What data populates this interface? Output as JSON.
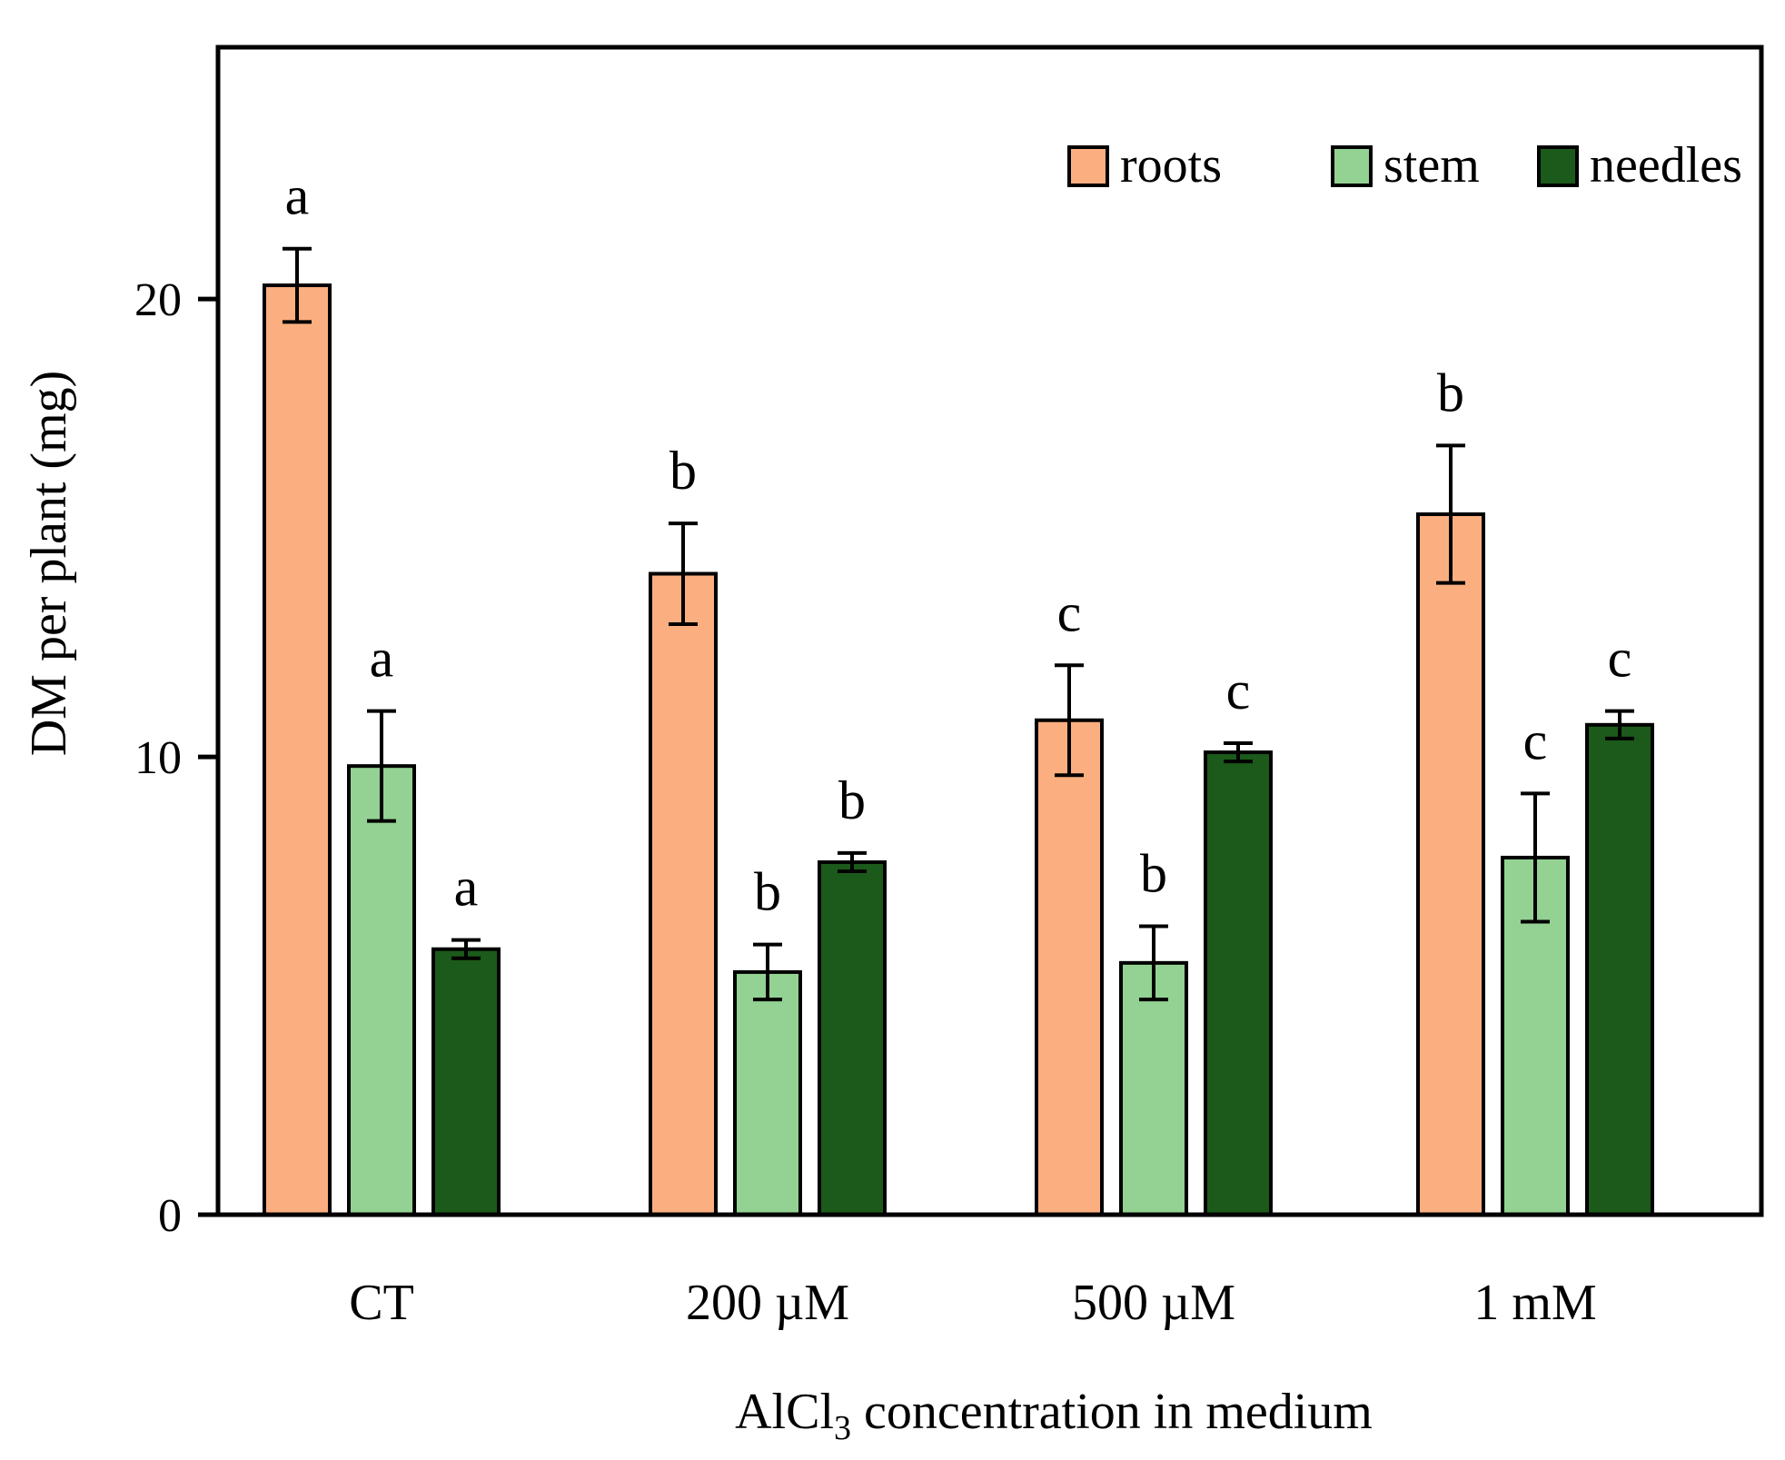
{
  "chart_data": {
    "type": "bar",
    "xlabel": {
      "main": "AlCl",
      "sub": "3",
      "rest": " concentration in medium"
    },
    "ylabel": "DM per plant (mg)",
    "ylim": [
      0,
      25.5
    ],
    "yticks": [
      0,
      10,
      20
    ],
    "ytick_labels": [
      "0",
      "10",
      "20"
    ],
    "grid": false,
    "legend_position": "top-right",
    "categories": [
      "CT",
      "200 µM",
      "500 µM",
      "1 mM"
    ],
    "series": [
      {
        "name": "roots",
        "color": "#fbaf80",
        "values": [
          20.3,
          14.0,
          10.8,
          15.3
        ],
        "errors": [
          0.8,
          1.1,
          1.2,
          1.5
        ],
        "labels": [
          "a",
          "b",
          "c",
          "b"
        ]
      },
      {
        "name": "stem",
        "color": "#93d292",
        "values": [
          9.8,
          5.3,
          5.5,
          7.8
        ],
        "errors": [
          1.2,
          0.6,
          0.8,
          1.4
        ],
        "labels": [
          "a",
          "b",
          "b",
          "c"
        ]
      },
      {
        "name": "needles",
        "color": "#1c5a1b",
        "values": [
          5.8,
          7.7,
          10.1,
          10.7
        ],
        "errors": [
          0.2,
          0.2,
          0.2,
          0.3
        ],
        "labels": [
          "a",
          "b",
          "c",
          "c"
        ]
      }
    ]
  }
}
